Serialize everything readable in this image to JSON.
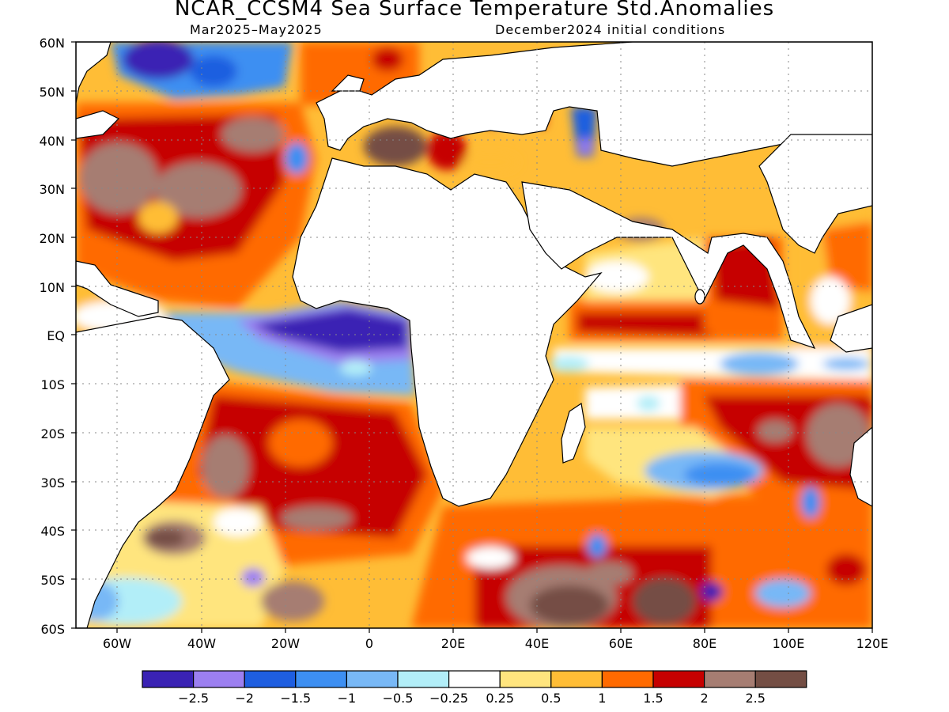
{
  "title": "NCAR_CCSM4 Sea Surface Temperature Std.Anomalies",
  "subtitle_left": "Mar2025–May2025",
  "subtitle_right": "December2024 initial conditions",
  "lat_labels": [
    "60N",
    "50N",
    "40N",
    "30N",
    "20N",
    "10N",
    "EQ",
    "10S",
    "20S",
    "30S",
    "40S",
    "50S",
    "60S"
  ],
  "lon_labels": [
    "60W",
    "40W",
    "20W",
    "0",
    "20E",
    "40E",
    "60E",
    "80E",
    "100E",
    "120E"
  ],
  "colorbar": {
    "colors": [
      "#3a22b4",
      "#9c7ff0",
      "#1e5ee0",
      "#3d8ff2",
      "#78b8f6",
      "#b2eef8",
      "#ffffff",
      "#ffe57e",
      "#ffbd36",
      "#ff6a00",
      "#c60000",
      "#a67d72",
      "#744e44"
    ],
    "labels": [
      "−2.5",
      "−2",
      "−1.5",
      "−1",
      "−0.5",
      "−0.25",
      "0.25",
      "0.5",
      "1",
      "1.5",
      "2",
      "2.5"
    ]
  },
  "land_color": "#ffffff"
}
